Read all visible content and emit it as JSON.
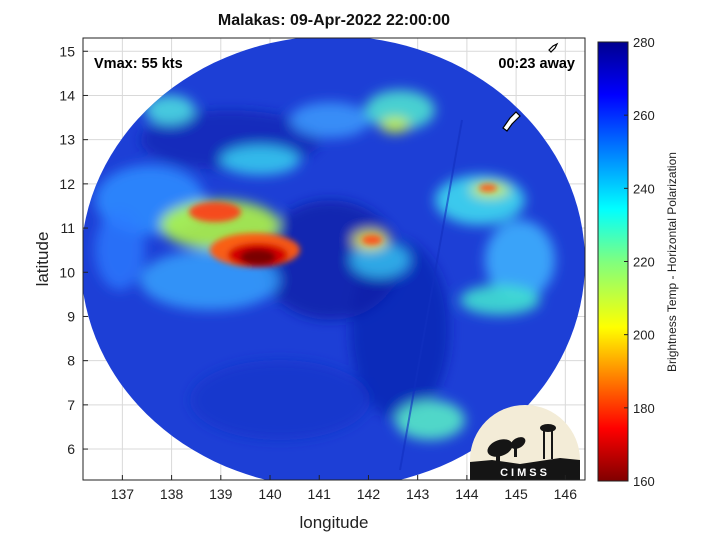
{
  "title": "Malakas: 09-Apr-2022 22:00:00",
  "annotations": {
    "vmax": "Vmax: 55 kts",
    "time_away": "00:23 away"
  },
  "axes": {
    "xlabel": "longitude",
    "ylabel": "latitude",
    "xlim": [
      136.2,
      146.4
    ],
    "ylim": [
      5.3,
      15.3
    ],
    "xticks": [
      137,
      138,
      139,
      140,
      141,
      142,
      143,
      144,
      145,
      146
    ],
    "yticks": [
      6,
      7,
      8,
      9,
      10,
      11,
      12,
      13,
      14,
      15
    ],
    "grid": true
  },
  "colorbar": {
    "label": "Brightness Temp - Horizontal Polarization",
    "min": 160,
    "max": 280,
    "ticks": [
      160,
      180,
      200,
      220,
      240,
      260,
      280
    ],
    "colormap": "jet"
  },
  "logo": {
    "text": "CIMSS"
  },
  "colors": {
    "background_swath": "#1d3fd6",
    "cold_core": "#7a0000"
  }
}
